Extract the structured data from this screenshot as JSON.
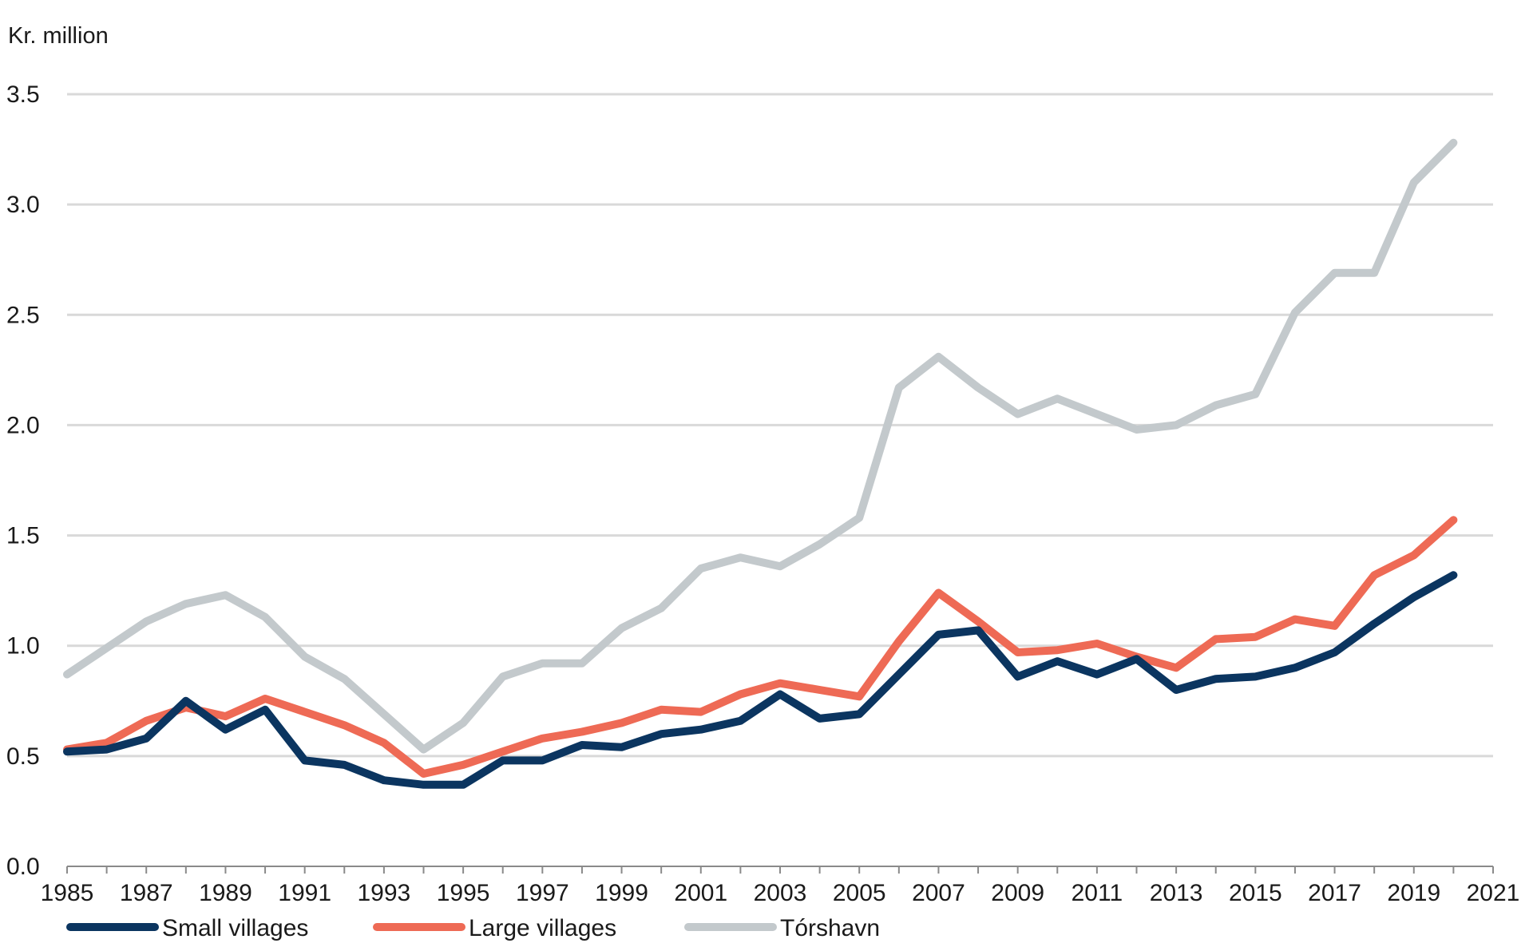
{
  "chart_data": {
    "type": "line",
    "title": "",
    "unit_label": "Kr. million",
    "xlabel": "",
    "ylabel": "",
    "xlim": [
      1985,
      2021
    ],
    "ylim": [
      0.0,
      3.5
    ],
    "grid": true,
    "legend_position": "bottom",
    "x_tick_labels": [
      "1985",
      "1987",
      "1989",
      "1991",
      "1993",
      "1995",
      "1997",
      "1999",
      "2001",
      "2003",
      "2005",
      "2007",
      "2009",
      "2011",
      "2013",
      "2015",
      "2017",
      "2019",
      "2021"
    ],
    "y_tick_labels": [
      "0.0",
      "0.5",
      "1.0",
      "1.5",
      "2.0",
      "2.5",
      "3.0",
      "3.5"
    ],
    "x": [
      1985,
      1986,
      1987,
      1988,
      1989,
      1990,
      1991,
      1992,
      1993,
      1994,
      1995,
      1996,
      1997,
      1998,
      1999,
      2000,
      2001,
      2002,
      2003,
      2004,
      2005,
      2006,
      2007,
      2008,
      2009,
      2010,
      2011,
      2012,
      2013,
      2014,
      2015,
      2016,
      2017,
      2018,
      2019,
      2020
    ],
    "series": [
      {
        "name": "Small villages",
        "color": "#0b3560",
        "values": [
          0.52,
          0.53,
          0.58,
          0.75,
          0.62,
          0.71,
          0.48,
          0.46,
          0.39,
          0.37,
          0.37,
          0.48,
          0.48,
          0.55,
          0.54,
          0.6,
          0.62,
          0.66,
          0.78,
          0.67,
          0.69,
          0.87,
          1.05,
          1.07,
          0.86,
          0.93,
          0.87,
          0.94,
          0.8,
          0.85,
          0.86,
          0.9,
          0.97,
          1.1,
          1.22,
          1.32
        ]
      },
      {
        "name": "Large villages",
        "color": "#ee6a55",
        "values": [
          0.53,
          0.56,
          0.66,
          0.72,
          0.68,
          0.76,
          0.7,
          0.64,
          0.56,
          0.42,
          0.46,
          0.52,
          0.58,
          0.61,
          0.65,
          0.71,
          0.7,
          0.78,
          0.83,
          0.8,
          0.77,
          1.02,
          1.24,
          1.11,
          0.97,
          0.98,
          1.01,
          0.95,
          0.9,
          1.03,
          1.04,
          1.12,
          1.09,
          1.32,
          1.41,
          1.57
        ]
      },
      {
        "name": "Tórshavn",
        "color": "#c3c9cc",
        "values": [
          0.87,
          0.99,
          1.11,
          1.19,
          1.23,
          1.13,
          0.95,
          0.85,
          0.69,
          0.53,
          0.65,
          0.86,
          0.92,
          0.92,
          1.08,
          1.17,
          1.35,
          1.4,
          1.36,
          1.46,
          1.58,
          2.17,
          2.31,
          2.17,
          2.05,
          2.12,
          2.05,
          1.98,
          2.0,
          2.09,
          2.14,
          2.51,
          2.69,
          2.69,
          3.1,
          3.28
        ]
      }
    ]
  }
}
